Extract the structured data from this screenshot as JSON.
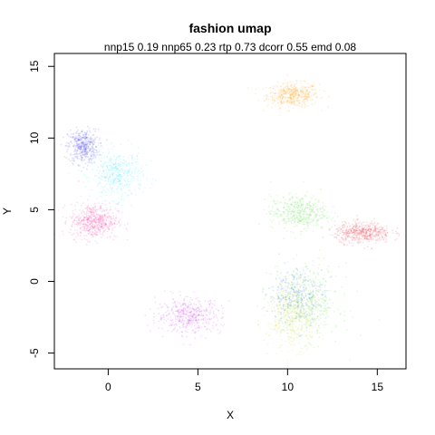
{
  "chart_data": {
    "type": "scatter",
    "title": "fashion umap",
    "subtitle": "nnp15 0.19 nnp65 0.23 rtp 0.73 dcorr 0.55 emd 0.08",
    "xlabel": "X",
    "ylabel": "Y",
    "xlim": [
      -3,
      16.6
    ],
    "ylim": [
      -6.1,
      15.9
    ],
    "xticks": [
      0,
      5,
      10,
      15
    ],
    "yticks": [
      -5,
      0,
      5,
      10,
      15
    ],
    "grid": false,
    "legend": "none",
    "point_alpha": 0.15,
    "clusters": [
      {
        "color": "#ff9900",
        "center": [
          10.3,
          13.0
        ],
        "spread": [
          1.2,
          0.7
        ],
        "n": 500
      },
      {
        "color": "#3f33ee",
        "center": [
          -1.4,
          9.4
        ],
        "spread": [
          0.7,
          1.0
        ],
        "n": 450
      },
      {
        "color": "#1fe3ff",
        "center": [
          0.5,
          7.4
        ],
        "spread": [
          1.2,
          1.4
        ],
        "n": 450
      },
      {
        "color": "#ff1f9a",
        "center": [
          -0.8,
          4.2
        ],
        "spread": [
          1.1,
          1.0
        ],
        "n": 550
      },
      {
        "color": "#44e024",
        "center": [
          10.6,
          4.8
        ],
        "spread": [
          1.3,
          1.0
        ],
        "n": 450
      },
      {
        "color": "#ee2233",
        "center": [
          14.2,
          3.4
        ],
        "spread": [
          1.3,
          0.6
        ],
        "n": 500
      },
      {
        "color": "#44e024",
        "center": [
          11.0,
          -1.5
        ],
        "spread": [
          1.6,
          2.2
        ],
        "n": 450
      },
      {
        "color": "#d4e022",
        "center": [
          10.3,
          -2.5
        ],
        "spread": [
          1.2,
          1.8
        ],
        "n": 400
      },
      {
        "color": "#2b6fd6",
        "center": [
          10.5,
          -1.0
        ],
        "spread": [
          1.3,
          1.6
        ],
        "n": 350
      },
      {
        "color": "#cc22ee",
        "center": [
          4.5,
          -2.4
        ],
        "spread": [
          1.5,
          1.0
        ],
        "n": 450
      }
    ]
  }
}
